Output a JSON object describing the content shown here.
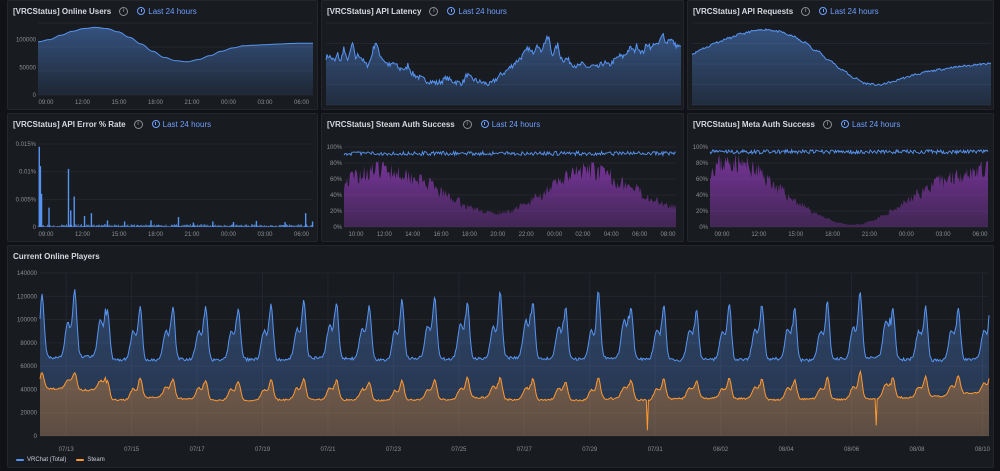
{
  "colors": {
    "vrchat": "#5794f2",
    "steam": "#ff9830",
    "purple": "#8f3bb8",
    "grid": "#23262d",
    "axis_text": "#8e8e95",
    "time_range": "#6e9fff"
  },
  "panels": {
    "p1": {
      "title": "[VRCStatus] Online Users",
      "time_range": "Last 24 hours"
    },
    "p2": {
      "title": "[VRCStatus] API Latency",
      "time_range": "Last 24 hours"
    },
    "p3": {
      "title": "[VRCStatus] API Requests",
      "time_range": "Last 24 hours"
    },
    "p4": {
      "title": "[VRCStatus] API Error % Rate",
      "time_range": "Last 24 hours"
    },
    "p5": {
      "title": "[VRCStatus] Steam Auth Success",
      "time_range": "Last 24 hours"
    },
    "p6": {
      "title": "[VRCStatus] Meta Auth Success",
      "time_range": "Last 24 hours"
    },
    "p7": {
      "title": "Current Online Players"
    }
  },
  "chart_data": [
    {
      "id": "online_users",
      "type": "area",
      "title": "[VRCStatus] Online Users",
      "x_ticks": [
        "09:00",
        "12:00",
        "15:00",
        "18:00",
        "21:00",
        "00:00",
        "03:00",
        "06:00"
      ],
      "y_ticks": [
        "0",
        "50000",
        "100000"
      ],
      "ylim": [
        0,
        130000
      ],
      "hours": [
        0,
        1,
        2,
        3,
        4,
        5,
        6,
        7,
        8,
        9,
        10,
        11,
        12,
        13,
        14,
        15,
        16,
        17,
        18,
        19,
        20,
        21,
        22,
        23,
        24
      ],
      "values": [
        96000,
        100000,
        108000,
        115000,
        120000,
        122000,
        120000,
        114000,
        104000,
        92000,
        79000,
        68000,
        62000,
        60000,
        64000,
        71000,
        79000,
        85000,
        89000,
        90000,
        91000,
        92000,
        93000,
        93500,
        93500
      ],
      "series": [
        {
          "name": "",
          "color": "#5794f2"
        }
      ]
    },
    {
      "id": "api_latency",
      "type": "area",
      "title": "[VRCStatus] API Latency",
      "x_ticks": [],
      "y_ticks": [],
      "samples": [
        70,
        72,
        68,
        64,
        75,
        62,
        85,
        66,
        72,
        92,
        68,
        74,
        70,
        62,
        58,
        64,
        80,
        94,
        76,
        70,
        64,
        60,
        57,
        62,
        58,
        52,
        55,
        50,
        60,
        48,
        44,
        42,
        40,
        38,
        36,
        35,
        34,
        33,
        32,
        34,
        36,
        40,
        37,
        35,
        34,
        33,
        32,
        35,
        45,
        40,
        38,
        36,
        34,
        33,
        32,
        31,
        30,
        34,
        38,
        42,
        46,
        48,
        52,
        56,
        60,
        64,
        68,
        72,
        78,
        84,
        76,
        80,
        92,
        78,
        86,
        96,
        98,
        74,
        80,
        88,
        70,
        66,
        68,
        64,
        60,
        58,
        56,
        60,
        58,
        56,
        55,
        58,
        54,
        56,
        60,
        62,
        58,
        60,
        64,
        68,
        72,
        70,
        74,
        80,
        84,
        78,
        88,
        80,
        76,
        86,
        90,
        82,
        92,
        86,
        96,
        104,
        90,
        98,
        94,
        88,
        86,
        84
      ],
      "ylim": [
        0,
        120
      ],
      "series": [
        {
          "name": "",
          "color": "#5794f2"
        }
      ]
    },
    {
      "id": "api_requests",
      "type": "area",
      "title": "[VRCStatus] API Requests",
      "x_ticks": [],
      "y_ticks": [],
      "hours": [
        0,
        1,
        2,
        3,
        4,
        5,
        6,
        7,
        8,
        9,
        10,
        11,
        12,
        13,
        14,
        15,
        16,
        17,
        18,
        19,
        20,
        21,
        22,
        23,
        24
      ],
      "values": [
        72,
        80,
        88,
        94,
        100,
        104,
        106,
        103,
        97,
        88,
        76,
        63,
        50,
        38,
        30,
        28,
        32,
        38,
        43,
        47,
        50,
        53,
        55,
        57,
        58
      ],
      "ylim": [
        0,
        115
      ],
      "series": [
        {
          "name": "",
          "color": "#5794f2"
        }
      ]
    },
    {
      "id": "api_error_rate",
      "type": "bar",
      "title": "[VRCStatus] API Error % Rate",
      "x_ticks": [
        "09:00",
        "12:00",
        "15:00",
        "18:00",
        "21:00",
        "00:00",
        "03:00",
        "06:00"
      ],
      "y_ticks": [
        "0",
        "0.005%",
        "0.01%",
        "0.015%"
      ],
      "ylim": [
        0,
        0.015
      ],
      "spikes": [
        [
          0.05,
          0.0145
        ],
        [
          0.15,
          0.011
        ],
        [
          0.25,
          0.006
        ],
        [
          0.9,
          0.0035
        ],
        [
          2.6,
          0.0105
        ],
        [
          2.8,
          0.003
        ],
        [
          3.1,
          0.0055
        ],
        [
          4.0,
          0.002
        ],
        [
          4.6,
          0.0025
        ],
        [
          6.0,
          0.0012
        ],
        [
          7.5,
          0.001
        ],
        [
          9.8,
          0.0012
        ],
        [
          12.2,
          0.0018
        ],
        [
          13.5,
          0.0008
        ],
        [
          15.2,
          0.001
        ],
        [
          17.0,
          0.0009
        ],
        [
          19.0,
          0.0011
        ],
        [
          21.5,
          0.0009
        ],
        [
          23.3,
          0.0025
        ],
        [
          23.9,
          0.001
        ]
      ],
      "series": [
        {
          "name": "",
          "color": "#5794f2"
        }
      ]
    },
    {
      "id": "steam_auth_success",
      "type": "area",
      "title": "[VRCStatus] Steam Auth Success",
      "x_ticks": [
        "10:00",
        "12:00",
        "14:00",
        "16:00",
        "18:00",
        "20:00",
        "22:00",
        "00:00",
        "02:00",
        "04:00",
        "06:00",
        "08:00"
      ],
      "y_ticks": [
        "0%",
        "20%",
        "40%",
        "60%",
        "80%",
        "100%"
      ],
      "ylim": [
        0,
        100
      ],
      "success_pct": 92,
      "volume_hours": [
        0,
        1,
        2,
        3,
        4,
        5,
        6,
        7,
        8,
        9,
        10,
        11,
        12,
        13,
        14,
        15,
        16,
        17,
        18,
        19,
        20,
        21,
        22,
        23,
        24
      ],
      "volume_pct": [
        62,
        72,
        78,
        80,
        76,
        70,
        60,
        48,
        38,
        28,
        22,
        18,
        22,
        30,
        42,
        56,
        68,
        76,
        78,
        72,
        62,
        52,
        42,
        34,
        28
      ],
      "series": [
        {
          "name": "",
          "color": "#5794f2"
        },
        {
          "name": "",
          "color": "#8f3bb8"
        }
      ]
    },
    {
      "id": "meta_auth_success",
      "type": "area",
      "title": "[VRCStatus] Meta Auth Success",
      "x_ticks": [
        "09:00",
        "12:00",
        "15:00",
        "18:00",
        "21:00",
        "00:00",
        "03:00",
        "06:00"
      ],
      "y_ticks": [
        "0%",
        "20%",
        "40%",
        "60%",
        "80%",
        "100%"
      ],
      "ylim": [
        0,
        100
      ],
      "success_pct": 94,
      "volume_hours": [
        0,
        1,
        2,
        3,
        4,
        5,
        6,
        7,
        8,
        9,
        10,
        11,
        12,
        13,
        14,
        15,
        16,
        17,
        18,
        19,
        20,
        21,
        22,
        23,
        24
      ],
      "volume_pct": [
        80,
        88,
        90,
        86,
        78,
        66,
        52,
        40,
        30,
        20,
        12,
        6,
        3,
        4,
        8,
        16,
        26,
        36,
        46,
        56,
        64,
        70,
        75,
        78,
        80
      ],
      "series": [
        {
          "name": "",
          "color": "#5794f2"
        },
        {
          "name": "",
          "color": "#8f3bb8"
        }
      ]
    },
    {
      "id": "current_online_players",
      "type": "area",
      "title": "Current Online Players",
      "x_ticks": [
        "07/13",
        "07/15",
        "07/17",
        "07/19",
        "07/21",
        "07/23",
        "07/25",
        "07/27",
        "07/29",
        "07/31",
        "08/02",
        "08/04",
        "08/06",
        "08/08",
        "08/10"
      ],
      "y_ticks": [
        "0",
        "20000",
        "40000",
        "60000",
        "80000",
        "100000",
        "120000",
        "140000"
      ],
      "ylim": [
        0,
        140000
      ],
      "days": 29,
      "vrchat_daily_peak": [
        121000,
        125000,
        109000,
        111000,
        111000,
        111000,
        110000,
        113000,
        118000,
        114000,
        112000,
        117000,
        119000,
        115000,
        125000,
        115000,
        111000,
        125000,
        111000,
        112000,
        109000,
        114000,
        113000,
        110000,
        115000,
        125000,
        110000,
        111000,
        111000,
        122000
      ],
      "vrchat_daily_trough": [
        58000,
        58000,
        58000,
        57000,
        58000,
        57000,
        58000,
        57000,
        58000,
        58000,
        57000,
        58000,
        57000,
        58000,
        57000,
        58000,
        58000,
        57000,
        58000,
        57000,
        58000,
        57000,
        58000,
        57000,
        58000,
        57000,
        58000,
        57000,
        58000,
        58000
      ],
      "steam_daily_peak": [
        55000,
        54000,
        48000,
        50000,
        49000,
        48000,
        47000,
        49000,
        50000,
        48000,
        46000,
        48000,
        49000,
        50000,
        50000,
        49000,
        47000,
        50000,
        48000,
        49000,
        47000,
        50000,
        49000,
        48000,
        51000,
        55000,
        50000,
        51000,
        52000,
        55000
      ],
      "steam_daily_trough": [
        38000,
        37000,
        25000,
        30000,
        29000,
        28000,
        24000,
        27000,
        28000,
        26000,
        28000,
        27000,
        28000,
        30000,
        28000,
        27000,
        28000,
        29000,
        5000,
        29000,
        30000,
        29000,
        28000,
        29000,
        28000,
        9000,
        30000,
        31000,
        34000,
        38000
      ],
      "series": [
        {
          "name": "VRChat (Total)",
          "color": "#5794f2"
        },
        {
          "name": "Steam",
          "color": "#ff9830"
        }
      ]
    }
  ]
}
